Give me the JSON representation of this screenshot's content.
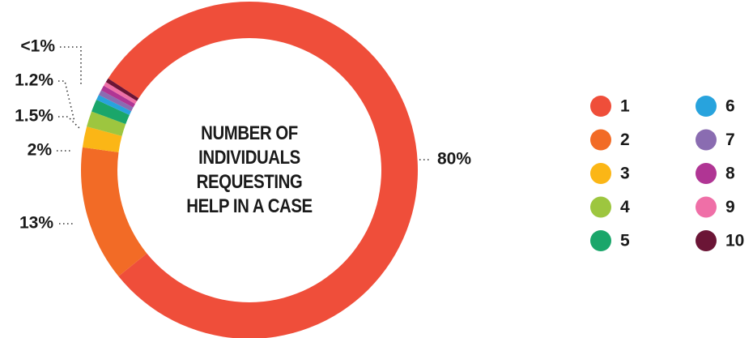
{
  "chart_data": {
    "type": "donut",
    "title": "NUMBER OF INDIVIDUALS REQUESTING HELP IN A CASE",
    "categories": [
      "1",
      "2",
      "3",
      "4",
      "5",
      "6",
      "7",
      "8",
      "9",
      "10"
    ],
    "values": [
      80,
      13,
      2,
      1.5,
      1.2,
      0.5,
      0.5,
      0.5,
      0.4,
      0.4
    ],
    "value_labels": [
      "80%",
      "13%",
      "2%",
      "1.5%",
      "1.2%",
      "<1%",
      null,
      null,
      null,
      null
    ],
    "colors": [
      "#ef4e3a",
      "#f26b26",
      "#fbb616",
      "#9dc63f",
      "#1aa66a",
      "#28a3dd",
      "#8a6cb1",
      "#b03594",
      "#ef6fa7",
      "#6b1536"
    ]
  }
}
